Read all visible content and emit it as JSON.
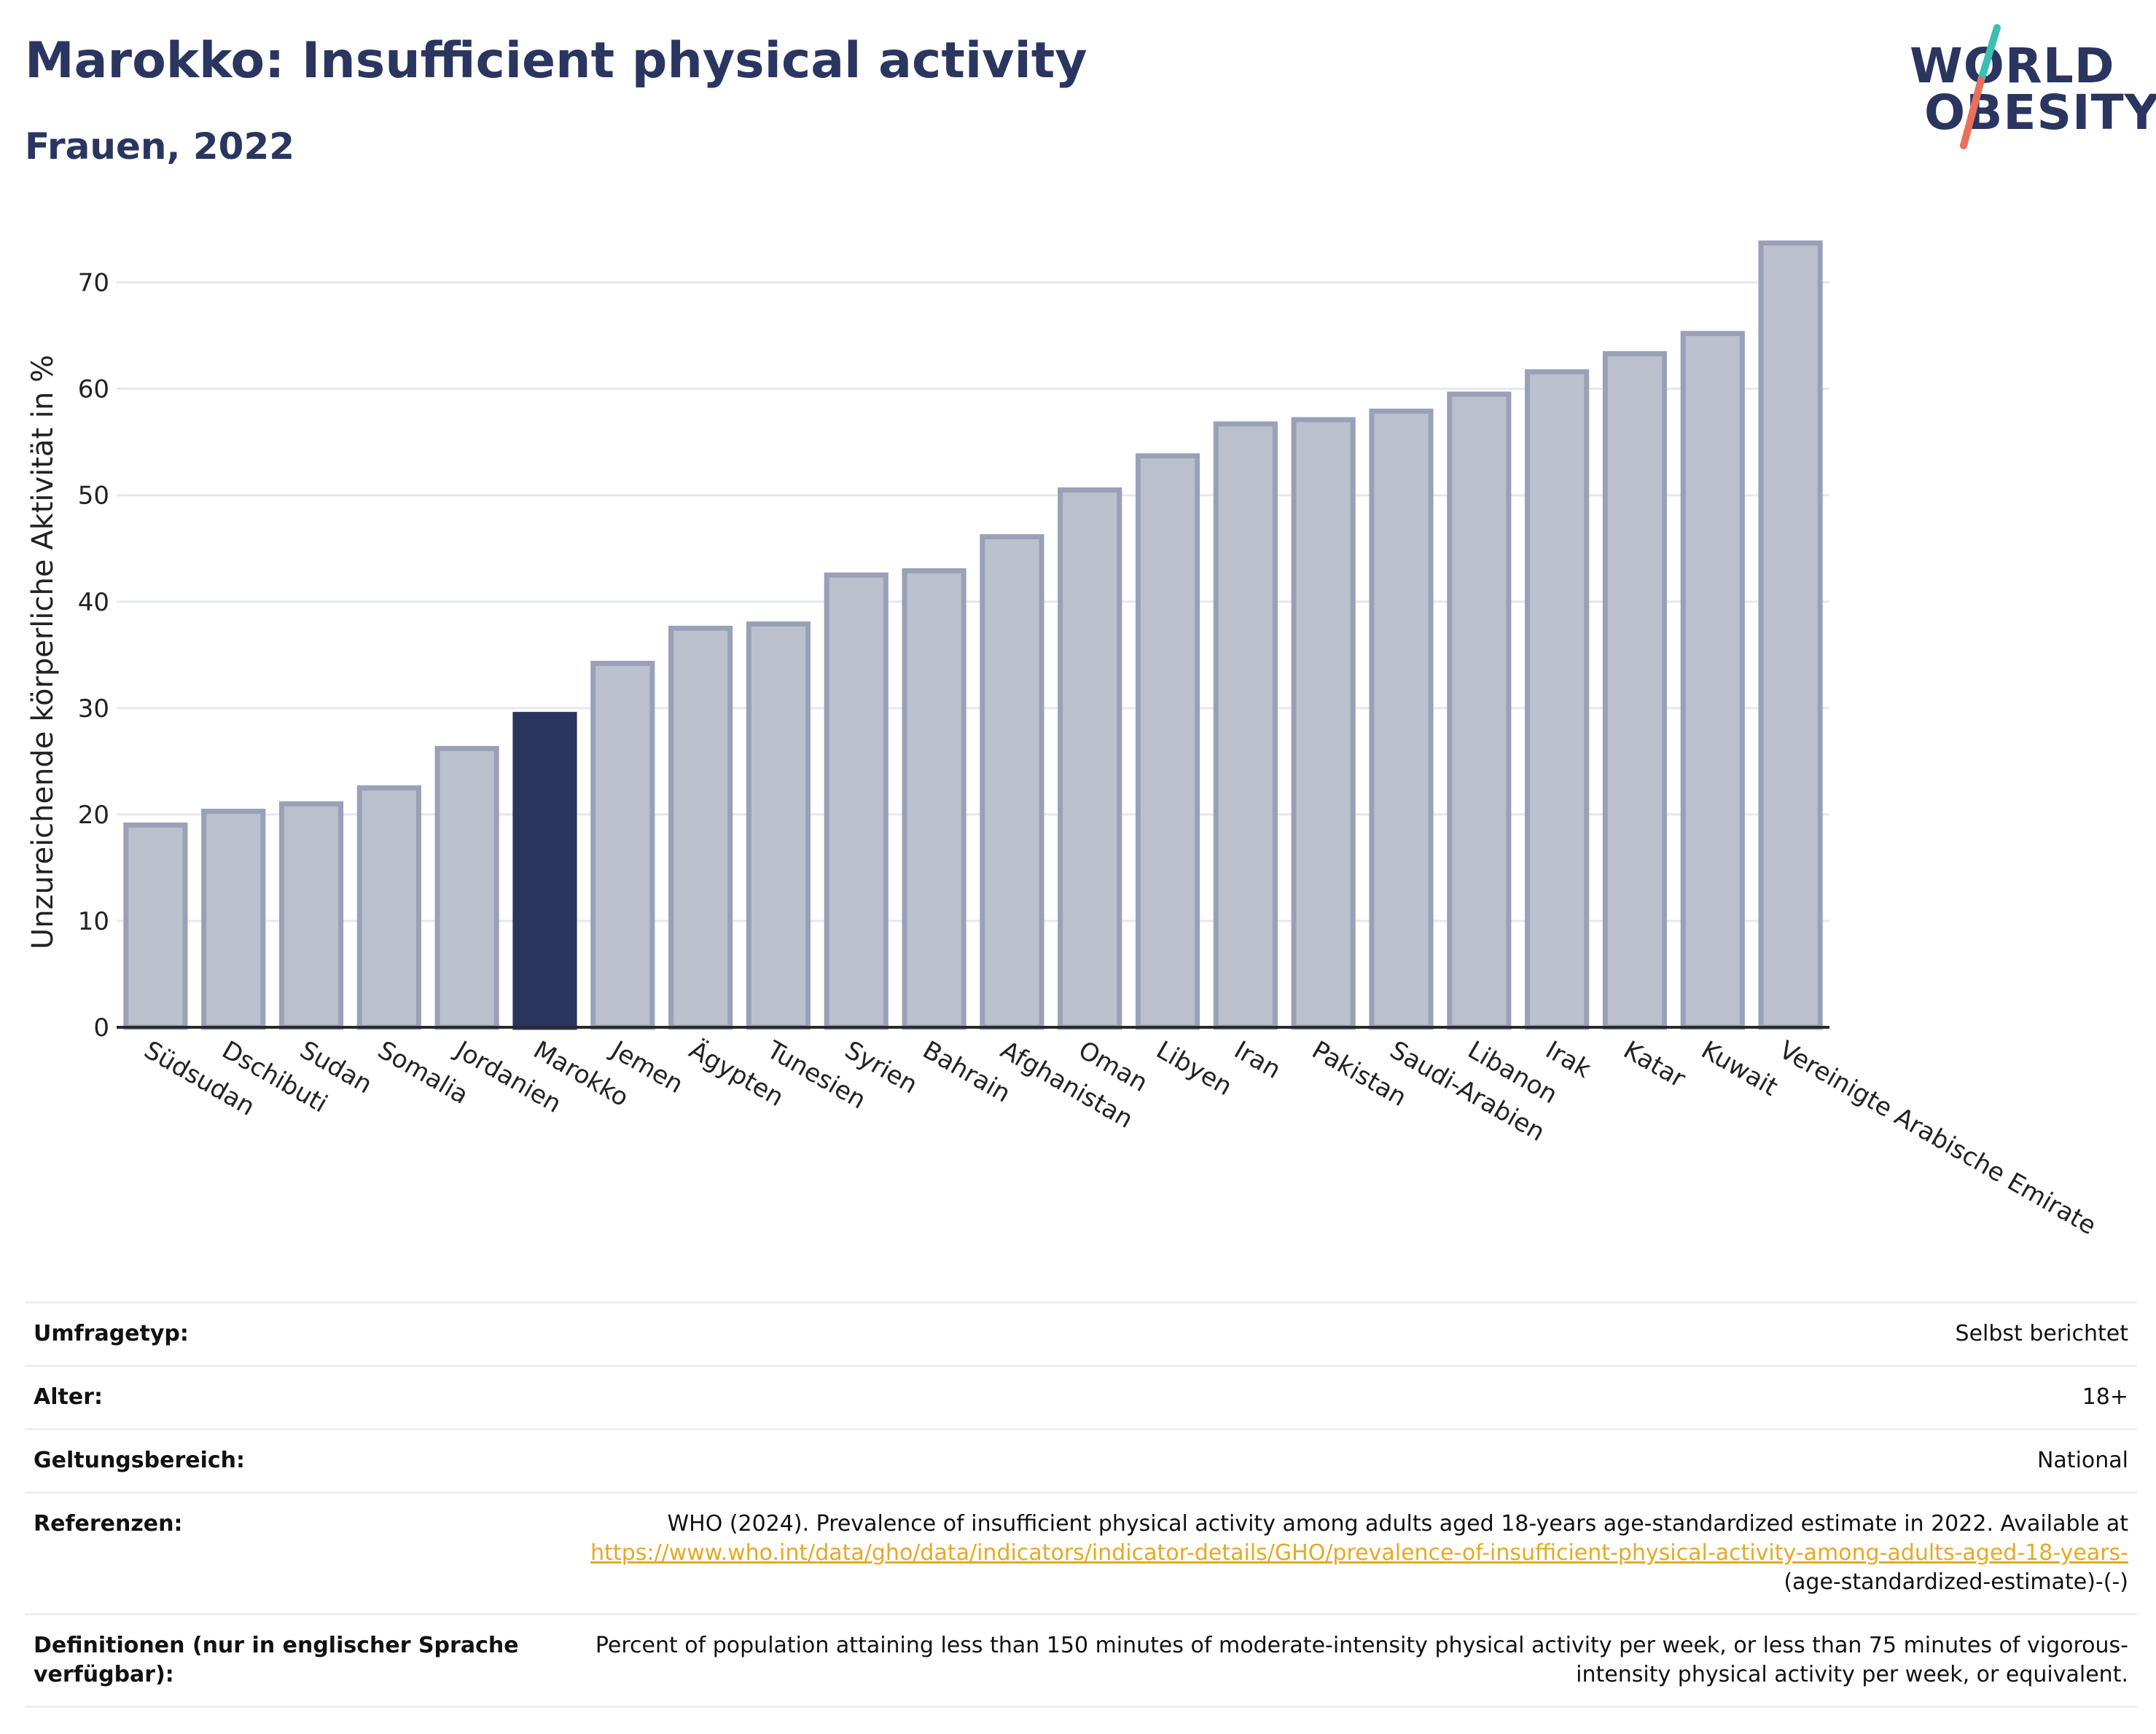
{
  "header": {
    "title": "Marokko: Insufficient physical activity",
    "subtitle": "Frauen, 2022"
  },
  "logo": {
    "line1": "WORLD",
    "line2": "OBESITY",
    "colors": {
      "text": "#2a3560",
      "slash_top": "#3bbfb2",
      "slash_bottom": "#e8705c"
    }
  },
  "colors": {
    "bar_default_fill": "#bcc0cd",
    "bar_default_stroke": "#9aa0b8",
    "bar_highlight": "#2a3560",
    "grid": "#e6e8ef",
    "axis": "#2a2a2a"
  },
  "chart_data": {
    "type": "bar",
    "ylabel": "Unzureichende körperliche Aktivität in %",
    "xlabel": "",
    "ylim": [
      0,
      76
    ],
    "yticks": [
      0,
      10,
      20,
      30,
      40,
      50,
      60,
      70
    ],
    "grid": true,
    "highlight": "Marokko",
    "categories": [
      "Südsudan",
      "Dschibuti",
      "Sudan",
      "Somalia",
      "Jordanien",
      "Marokko",
      "Jemen",
      "Ägypten",
      "Tunesien",
      "Syrien",
      "Bahrain",
      "Afghanistan",
      "Oman",
      "Libyen",
      "Iran",
      "Pakistan",
      "Saudi-Arabien",
      "Libanon",
      "Irak",
      "Katar",
      "Kuwait",
      "Vereinigte Arabische Emirate"
    ],
    "values": [
      19.0,
      20.3,
      21.0,
      22.5,
      26.2,
      29.4,
      34.2,
      37.5,
      37.9,
      42.5,
      42.9,
      46.1,
      50.5,
      53.7,
      56.7,
      57.1,
      57.9,
      59.5,
      61.6,
      63.3,
      65.2,
      73.7
    ]
  },
  "info_table": {
    "survey_type": {
      "label": "Umfragetyp:",
      "value": "Selbst berichtet"
    },
    "age": {
      "label": "Alter:",
      "value": "18+"
    },
    "scope": {
      "label": "Geltungsbereich:",
      "value": "National"
    },
    "references": {
      "label": "Referenzen:",
      "text_before": "WHO (2024). Prevalence of insufficient physical activity among adults aged 18-years age-standardized estimate in 2022. Available at ",
      "link_text": "https://www.who.int/data/gho/data/indicators/indicator-details/GHO/prevalence-of-insufficient-physical-activity-among-adults-aged-18-years-",
      "text_after": "(age-standardized-estimate)-(-)"
    },
    "definitions": {
      "label": "Definitionen (nur in englischer Sprache verfügbar):",
      "value": "Percent of population attaining less than 150 minutes of moderate-intensity physical activity per week, or less than 75 minutes of vigorous-intensity physical activity per week, or equivalent."
    }
  }
}
